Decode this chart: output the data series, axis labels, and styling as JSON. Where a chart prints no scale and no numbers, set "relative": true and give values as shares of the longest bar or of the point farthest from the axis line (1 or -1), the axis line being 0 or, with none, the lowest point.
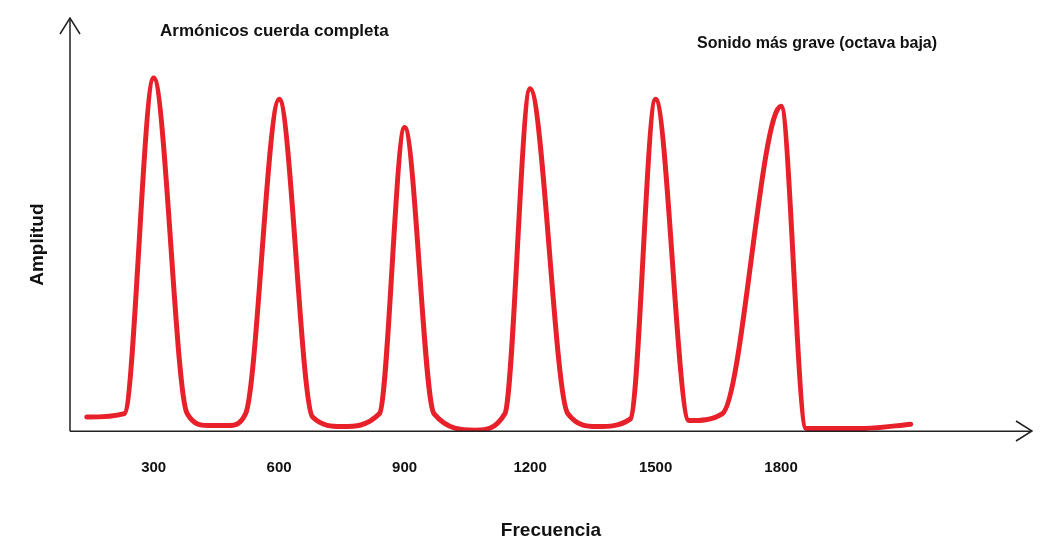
{
  "chart_data": {
    "type": "line",
    "title": "Armónicos cuerda completa",
    "xlabel": "Frecuencia",
    "ylabel": "Amplitud",
    "annotations": [
      "Sonido más grave (octava baja)"
    ],
    "relative": true,
    "xlim": [
      100,
      2400
    ],
    "xticks": [
      300,
      600,
      900,
      1200,
      1500,
      1800
    ],
    "grid": false,
    "legend": false,
    "marker": "none",
    "line_style": "solid",
    "series": [
      {
        "color": "#e8202a",
        "x": [
          140,
          230,
          300,
          380,
          430,
          480,
          520,
          600,
          680,
          750,
          840,
          900,
          970,
          1070,
          1140,
          1200,
          1290,
          1360,
          1440,
          1500,
          1580,
          1660,
          1800,
          1860,
          2000,
          2110
        ],
        "values": [
          0.04,
          0.05,
          1.0,
          0.05,
          0.016,
          0.016,
          0.05,
          0.94,
          0.04,
          0.013,
          0.05,
          0.86,
          0.05,
          0.003,
          0.05,
          0.97,
          0.05,
          0.013,
          0.035,
          0.94,
          0.03,
          0.05,
          0.92,
          0.008,
          0.008,
          0.02
        ]
      }
    ]
  }
}
